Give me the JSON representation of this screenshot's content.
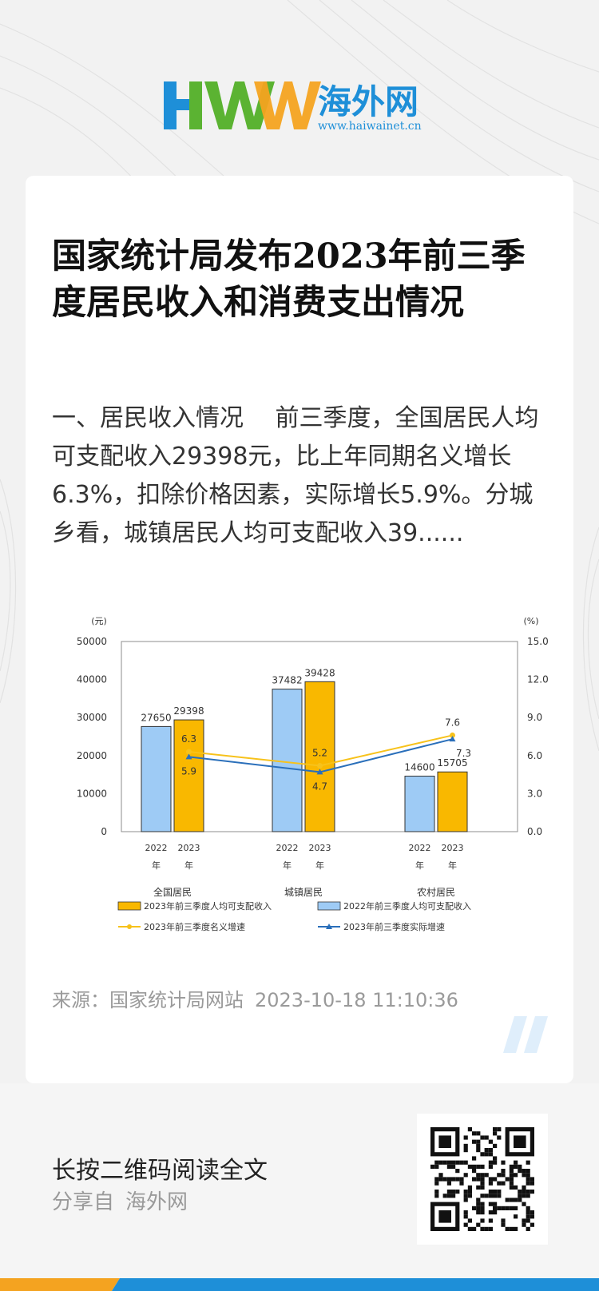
{
  "brand": {
    "logo_letters": "HWW",
    "name": "海外网",
    "url": "www.haiwainet.cn",
    "colors": {
      "blue": "#1e8fd8",
      "green": "#5bb332",
      "orange": "#f4a320"
    }
  },
  "article": {
    "title": "国家统计局发布2023年前三季度居民收入和消费支出情况",
    "summary": "一、居民收入情况　 前三季度，全国居民人均可支配收入29398元，比上年同期名义增长6.3%，扣除价格因素，实际增长5.9%。分城乡看，城镇居民人均可支配收入39......",
    "source": "来源：国家统计局网站",
    "datetime": "2023-10-18  11:10:36"
  },
  "chart_data": {
    "type": "bar",
    "y_left_unit": "(元)",
    "y_right_unit": "(%)",
    "y_left_ticks": [
      "0",
      "10000",
      "20000",
      "30000",
      "40000",
      "50000"
    ],
    "y_right_ticks": [
      "0.0",
      "3.0",
      "6.0",
      "9.0",
      "12.0",
      "15.0"
    ],
    "ylim": [
      0,
      50000
    ],
    "ylim_right": [
      0,
      15
    ],
    "groups": [
      "全国居民",
      "城镇居民",
      "农村居民"
    ],
    "year_labels": [
      "2022",
      "年",
      "2023",
      "年"
    ],
    "bar_series": [
      {
        "name": "2022年前三季度人均可支配收入",
        "color": "#9ecbf5",
        "values": [
          27650,
          37482,
          14600
        ],
        "labels": [
          "27650",
          "37482",
          "14600"
        ]
      },
      {
        "name": "2023年前三季度人均可支配收入",
        "color": "#f9b800",
        "values": [
          29398,
          39428,
          15705
        ],
        "labels": [
          "29398",
          "39428",
          "15705"
        ]
      }
    ],
    "line_series": [
      {
        "name": "2023年前三季度名义增速",
        "color": "#f7c21b",
        "values": [
          6.3,
          5.2,
          7.6
        ],
        "labels": [
          "6.3",
          "5.2",
          "7.6"
        ]
      },
      {
        "name": "2023年前三季度实际增速",
        "color": "#2a6fba",
        "values": [
          5.9,
          4.7,
          7.3
        ],
        "labels": [
          "5.9",
          "4.7",
          "7.3"
        ]
      }
    ],
    "legend_placement": "bottom",
    "grid": false
  },
  "footer": {
    "cta": "长按二维码阅读全文",
    "share_prefix": "分享自",
    "share_site": "海外网",
    "qr_icon": "qr-code-icon"
  }
}
